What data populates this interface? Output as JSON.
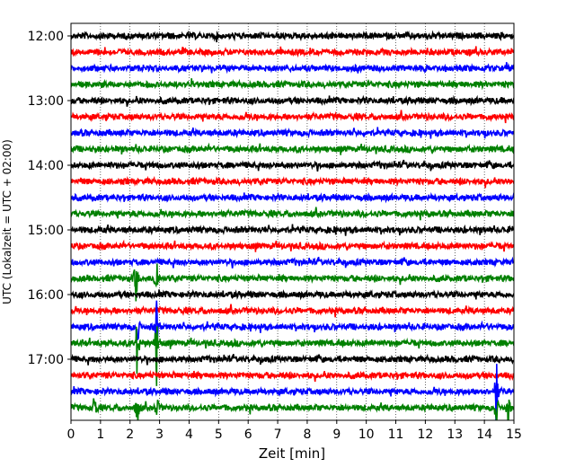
{
  "chart_data": {
    "type": "line",
    "title": "",
    "xlabel": "Zeit  [min]",
    "ylabel": "UTC (Lokalzeit = UTC + 02:00)",
    "xlim": [
      0,
      15
    ],
    "x_ticks": [
      "0",
      "1",
      "2",
      "3",
      "4",
      "5",
      "6",
      "7",
      "8",
      "9",
      "10",
      "11",
      "12",
      "13",
      "14",
      "15"
    ],
    "y_tick_labels": [
      "12:00",
      "13:00",
      "14:00",
      "15:00",
      "16:00",
      "17:00"
    ],
    "grid": "vertical dotted at each minute",
    "trace_interval_min": 15,
    "trace_colors_cycle": [
      "#000000",
      "#ff0000",
      "#0000ff",
      "#008000"
    ],
    "traces": [
      {
        "start": "12:00",
        "color": "#000000"
      },
      {
        "start": "12:15",
        "color": "#ff0000"
      },
      {
        "start": "12:30",
        "color": "#0000ff"
      },
      {
        "start": "12:45",
        "color": "#008000"
      },
      {
        "start": "13:00",
        "color": "#000000"
      },
      {
        "start": "13:15",
        "color": "#ff0000"
      },
      {
        "start": "13:30",
        "color": "#0000ff"
      },
      {
        "start": "13:45",
        "color": "#008000"
      },
      {
        "start": "14:00",
        "color": "#000000"
      },
      {
        "start": "14:15",
        "color": "#ff0000"
      },
      {
        "start": "14:30",
        "color": "#0000ff"
      },
      {
        "start": "14:45",
        "color": "#008000"
      },
      {
        "start": "15:00",
        "color": "#000000"
      },
      {
        "start": "15:15",
        "color": "#ff0000"
      },
      {
        "start": "15:30",
        "color": "#0000ff"
      },
      {
        "start": "15:45",
        "color": "#008000"
      },
      {
        "start": "16:00",
        "color": "#000000"
      },
      {
        "start": "16:15",
        "color": "#ff0000"
      },
      {
        "start": "16:30",
        "color": "#0000ff"
      },
      {
        "start": "16:45",
        "color": "#008000"
      },
      {
        "start": "17:00",
        "color": "#000000"
      },
      {
        "start": "17:15",
        "color": "#ff0000"
      },
      {
        "start": "17:30",
        "color": "#0000ff"
      },
      {
        "start": "17:45",
        "color": "#008000"
      }
    ],
    "events": [
      {
        "trace": 19,
        "minute": 2.25,
        "amplitude": 0.45
      },
      {
        "trace": 19,
        "minute": 2.9,
        "amplitude": 0.4
      },
      {
        "trace": 18,
        "minute": 2.25,
        "amplitude": 0.25
      },
      {
        "trace": 18,
        "minute": 2.9,
        "amplitude": 0.25
      },
      {
        "trace": 15,
        "minute": 2.2,
        "amplitude": 0.3
      },
      {
        "trace": 15,
        "minute": 2.9,
        "amplitude": 0.3
      },
      {
        "trace": 23,
        "minute": 2.25,
        "amplitude": 0.2
      },
      {
        "trace": 23,
        "minute": 2.9,
        "amplitude": 0.15
      },
      {
        "trace": 23,
        "minute": 0.8,
        "amplitude": 0.2
      },
      {
        "trace": 22,
        "minute": 14.4,
        "amplitude": 0.45
      },
      {
        "trace": 23,
        "minute": 14.4,
        "amplitude": 0.2
      },
      {
        "trace": 23,
        "minute": 14.8,
        "amplitude": 0.2
      }
    ]
  }
}
